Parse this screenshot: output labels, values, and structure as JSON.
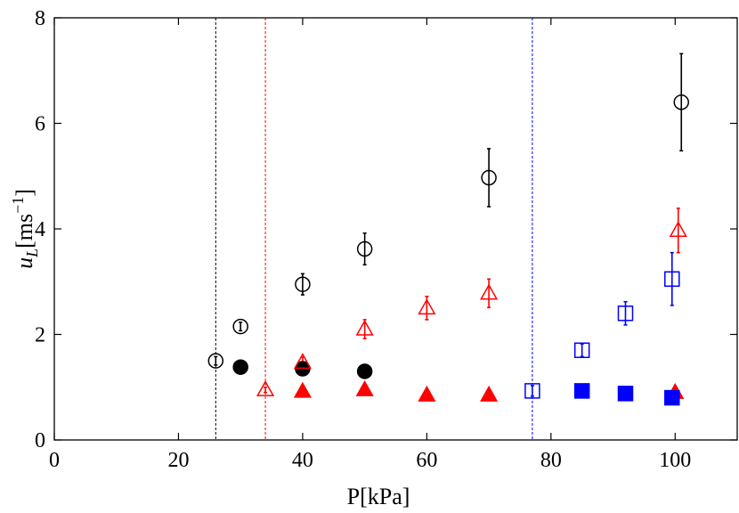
{
  "chart_data": {
    "type": "scatter",
    "xlabel": "P[kPa]",
    "ylabel": {
      "u": "u",
      "sub": "L",
      "unit": "[ms",
      "exp": "−1",
      "close": "]"
    },
    "xlim": [
      0,
      110
    ],
    "ylim": [
      0,
      8
    ],
    "xticks": [
      0,
      20,
      40,
      60,
      80,
      100
    ],
    "yticks": [
      0,
      2,
      4,
      6,
      8
    ],
    "grid": false,
    "legend": "none",
    "vlines": [
      {
        "x": 26,
        "color": "#000000",
        "style": "dashed"
      },
      {
        "x": 34,
        "color": "#ff0000",
        "style": "dashed"
      },
      {
        "x": 77,
        "color": "#0000ff",
        "style": "dashed"
      }
    ],
    "series": [
      {
        "marker": "circle-open",
        "color": "#000000",
        "points": [
          {
            "x": 26,
            "y": 1.5,
            "err": 0.08
          },
          {
            "x": 30,
            "y": 2.15,
            "err": 0.08
          },
          {
            "x": 40,
            "y": 2.95,
            "err": 0.2
          },
          {
            "x": 50,
            "y": 3.62,
            "err": 0.3
          },
          {
            "x": 70,
            "y": 4.97,
            "err": 0.55
          },
          {
            "x": 101,
            "y": 6.4,
            "err": 0.92
          }
        ]
      },
      {
        "marker": "circle-filled",
        "color": "#000000",
        "points": [
          {
            "x": 30,
            "y": 1.38
          },
          {
            "x": 40,
            "y": 1.35
          },
          {
            "x": 50,
            "y": 1.3
          }
        ]
      },
      {
        "marker": "triangle-open",
        "color": "#ff0000",
        "points": [
          {
            "x": 34,
            "y": 0.95,
            "err": 0.05
          },
          {
            "x": 40,
            "y": 1.47,
            "err": 0.1
          },
          {
            "x": 50,
            "y": 2.1,
            "err": 0.18
          },
          {
            "x": 60,
            "y": 2.5,
            "err": 0.22
          },
          {
            "x": 70,
            "y": 2.78,
            "err": 0.27
          },
          {
            "x": 100.5,
            "y": 3.97,
            "err": 0.42
          }
        ]
      },
      {
        "marker": "triangle-filled",
        "color": "#ff0000",
        "points": [
          {
            "x": 40,
            "y": 0.92
          },
          {
            "x": 50,
            "y": 0.95
          },
          {
            "x": 60,
            "y": 0.85
          },
          {
            "x": 70,
            "y": 0.85
          },
          {
            "x": 100,
            "y": 0.9
          }
        ]
      },
      {
        "marker": "square-open",
        "color": "#0000ff",
        "points": [
          {
            "x": 77,
            "y": 0.93,
            "err": 0.1
          },
          {
            "x": 85,
            "y": 1.7,
            "err": 0.12
          },
          {
            "x": 92,
            "y": 2.4,
            "err": 0.22
          },
          {
            "x": 99.5,
            "y": 3.05,
            "err": 0.5
          }
        ]
      },
      {
        "marker": "square-filled",
        "color": "#0000ff",
        "points": [
          {
            "x": 85,
            "y": 0.93
          },
          {
            "x": 92,
            "y": 0.88
          },
          {
            "x": 99.5,
            "y": 0.8
          }
        ]
      }
    ]
  }
}
